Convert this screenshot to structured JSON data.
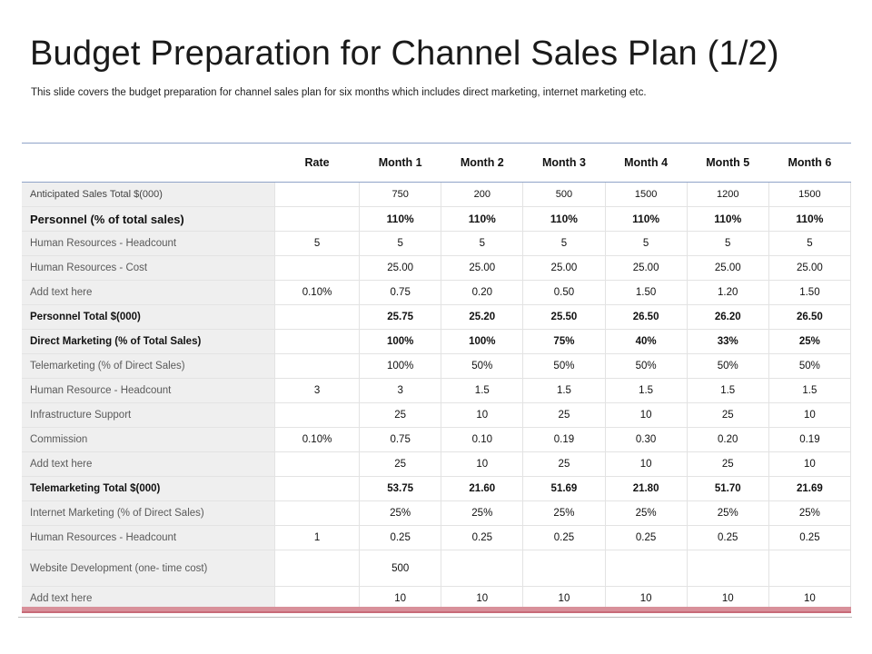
{
  "slide": {
    "title": "Budget Preparation for Channel Sales Plan (1/2)",
    "subtitle": "This slide covers the budget preparation for channel sales plan for six months which includes direct marketing, internet marketing etc."
  },
  "table": {
    "headers": [
      "",
      "Rate",
      "Month 1",
      "Month 2",
      "Month 3",
      "Month 4",
      "Month 5",
      "Month 6"
    ],
    "rows": [
      {
        "label": "Anticipated Sales Total $(000)",
        "rate": "",
        "months": [
          "750",
          "200",
          "500",
          "1500",
          "1200",
          "1500"
        ]
      },
      {
        "label": "Personnel (% of total sales)",
        "rate": "",
        "months": [
          "110%",
          "110%",
          "110%",
          "110%",
          "110%",
          "110%"
        ]
      },
      {
        "label": "Human Resources - Headcount",
        "rate": "5",
        "months": [
          "5",
          "5",
          "5",
          "5",
          "5",
          "5"
        ]
      },
      {
        "label": "Human Resources - Cost",
        "rate": "",
        "months": [
          "25.00",
          "25.00",
          "25.00",
          "25.00",
          "25.00",
          "25.00"
        ]
      },
      {
        "label": "Add text here",
        "rate": "0.10%",
        "months": [
          "0.75",
          "0.20",
          "0.50",
          "1.50",
          "1.20",
          "1.50"
        ]
      },
      {
        "label": "Personnel Total $(000)",
        "rate": "",
        "months": [
          "25.75",
          "25.20",
          "25.50",
          "26.50",
          "26.20",
          "26.50"
        ]
      },
      {
        "label": "Direct Marketing (% of Total Sales)",
        "rate": "",
        "months": [
          "100%",
          "100%",
          "75%",
          "40%",
          "33%",
          "25%"
        ]
      },
      {
        "label": "Telemarketing (% of Direct Sales)",
        "rate": "",
        "months": [
          "100%",
          "50%",
          "50%",
          "50%",
          "50%",
          "50%"
        ]
      },
      {
        "label": "Human Resource - Headcount",
        "rate": "3",
        "months": [
          "3",
          "1.5",
          "1.5",
          "1.5",
          "1.5",
          "1.5"
        ]
      },
      {
        "label": "Infrastructure Support",
        "rate": "",
        "months": [
          "25",
          "10",
          "25",
          "10",
          "25",
          "10"
        ]
      },
      {
        "label": "Commission",
        "rate": "0.10%",
        "months": [
          "0.75",
          "0.10",
          "0.19",
          "0.30",
          "0.20",
          "0.19"
        ]
      },
      {
        "label": "Add text here",
        "rate": "",
        "months": [
          "25",
          "10",
          "25",
          "10",
          "25",
          "10"
        ]
      },
      {
        "label": "Telemarketing Total $(000)",
        "rate": "",
        "months": [
          "53.75",
          "21.60",
          "51.69",
          "21.80",
          "51.70",
          "21.69"
        ]
      },
      {
        "label": "Internet Marketing (% of Direct Sales)",
        "rate": "",
        "months": [
          "25%",
          "25%",
          "25%",
          "25%",
          "25%",
          "25%"
        ]
      },
      {
        "label": "Human Resources - Headcount",
        "rate": "1",
        "months": [
          "0.25",
          "0.25",
          "0.25",
          "0.25",
          "0.25",
          "0.25"
        ]
      },
      {
        "label": "Website Development (one- time cost)",
        "rate": "",
        "months": [
          "500",
          "",
          "",
          "",
          "",
          ""
        ]
      },
      {
        "label": "Add text here",
        "rate": "",
        "months": [
          "10",
          "10",
          "10",
          "10",
          "10",
          "10"
        ]
      }
    ]
  },
  "colors": {
    "header_rule": "#8fa3c8",
    "label_bg": "#efefef",
    "footer_bar": "#d8909a"
  }
}
